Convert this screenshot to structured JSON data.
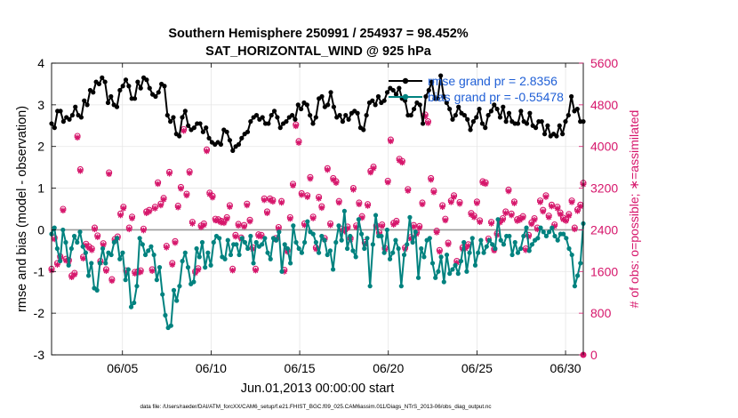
{
  "chart_data": {
    "type": "line",
    "title": "Southern Hemisphere 250991 / 254937 = 98.452%",
    "subtitle": "SAT_HORIZONTAL_WIND @ 925 hPa",
    "xlabel": "Jun.01,2013 00:00:00 start",
    "ylabel": "rmse and bias (model - observation)",
    "ylabel_right": "# of obs: o=possible; ∗=assimilated",
    "footer": "data file: /Users/raeder/DAI/ATM_forcXX/CAM6_setup/f.e21.FHIST_BGC.f09_025.CAM6assim.011/Diags_NTrS_2013-06/obs_diag_output.nc",
    "x_unit": "day of June 2013",
    "xlim": [
      1.0,
      31.0
    ],
    "ylim": [
      -3,
      4
    ],
    "ylim_right": [
      0,
      5600
    ],
    "xticks": [
      5,
      10,
      15,
      20,
      25,
      30
    ],
    "xtick_labels": [
      "06/05",
      "06/10",
      "06/15",
      "06/20",
      "06/25",
      "06/30"
    ],
    "yticks": [
      -3,
      -2,
      -1,
      0,
      1,
      2,
      3,
      4
    ],
    "yticks_right": [
      0,
      800,
      1600,
      2400,
      3200,
      4000,
      4800,
      5600
    ],
    "grid": true,
    "legend_position": "top-right",
    "series": [
      {
        "name": "rmse",
        "legend": "rmse grand pr = 2.8356",
        "color": "#000000",
        "axis": "left",
        "values": [
          2.55,
          2.45,
          2.85,
          2.85,
          2.6,
          2.7,
          2.65,
          2.75,
          2.95,
          2.75,
          2.7,
          3.1,
          3.0,
          3.35,
          3.3,
          3.55,
          3.5,
          3.65,
          3.55,
          3.05,
          3.2,
          3.0,
          2.95,
          3.35,
          3.45,
          3.6,
          3.45,
          3.15,
          3.15,
          3.55,
          3.4,
          3.65,
          3.6,
          3.4,
          3.25,
          3.2,
          3.3,
          3.5,
          3.45,
          2.75,
          2.6,
          2.7,
          2.3,
          2.25,
          2.7,
          2.85,
          2.5,
          2.4,
          2.45,
          2.55,
          2.55,
          2.35,
          2.45,
          2.2,
          2.1,
          2.05,
          2.1,
          2.05,
          2.4,
          2.35,
          2.15,
          1.9,
          2.0,
          2.05,
          2.2,
          2.3,
          2.35,
          2.6,
          2.7,
          2.75,
          2.65,
          2.7,
          2.55,
          2.55,
          2.75,
          2.85,
          2.7,
          2.45,
          2.55,
          2.6,
          2.7,
          2.75,
          2.65,
          3.0,
          2.9,
          3.05,
          3.0,
          2.75,
          2.55,
          2.7,
          3.15,
          3.2,
          2.95,
          3.0,
          3.3,
          2.95,
          2.7,
          2.75,
          2.6,
          2.75,
          2.65,
          2.8,
          2.85,
          2.8,
          2.45,
          2.4,
          2.75,
          3.05,
          3.1,
          3.0,
          3.2,
          3.05,
          3.1,
          3.3,
          3.4,
          3.35,
          3.25,
          3.4,
          3.15,
          3.1,
          2.75,
          2.75,
          2.9,
          3.05,
          3.0,
          2.55,
          3.2,
          3.35,
          3.55,
          3.15,
          3.15,
          3.7,
          3.2,
          3.05,
          2.9,
          2.65,
          2.75,
          2.95,
          2.8,
          2.75,
          2.65,
          2.4,
          2.6,
          2.7,
          2.9,
          2.55,
          2.45,
          2.75,
          2.85,
          3.0,
          2.9,
          2.7,
          2.95,
          2.6,
          2.8,
          2.6,
          2.55,
          2.55,
          2.85,
          2.6,
          2.55,
          2.8,
          2.5,
          2.45,
          2.6,
          2.6,
          2.3,
          2.5,
          2.25,
          2.3,
          2.25,
          2.5,
          2.3,
          2.6,
          2.75,
          3.2,
          2.85,
          2.9,
          2.6,
          2.6
        ]
      },
      {
        "name": "bias",
        "legend": "bias grand pr = -0.55478",
        "color": "#00827f",
        "axis": "left",
        "values": [
          -0.1,
          0.05,
          -0.45,
          -0.75,
          0.0,
          -0.3,
          -0.85,
          -0.45,
          -0.15,
          -0.3,
          -0.05,
          -0.4,
          -0.55,
          -1.1,
          -0.8,
          -1.4,
          -1.45,
          -0.8,
          -0.45,
          -0.8,
          -0.55,
          -0.6,
          -0.3,
          -0.2,
          -0.7,
          -0.55,
          -1.2,
          -0.95,
          -1.85,
          -1.75,
          -1.35,
          -0.2,
          -0.35,
          -0.6,
          -0.5,
          -0.4,
          -0.6,
          -1.2,
          -0.9,
          -1.55,
          -2.05,
          -2.35,
          -2.3,
          -1.45,
          -1.7,
          -1.35,
          -0.75,
          -0.55,
          -0.9,
          -1.3,
          -1.25,
          -0.45,
          -0.65,
          -0.3,
          -0.9,
          -0.55,
          -0.85,
          -0.3,
          -0.15,
          -0.2,
          -0.65,
          -0.7,
          -0.25,
          -0.6,
          -0.35,
          -0.35,
          -0.6,
          -0.2,
          -0.3,
          -0.45,
          -0.15,
          -0.8,
          -0.3,
          -0.4,
          -0.35,
          -0.2,
          -0.55,
          -0.7,
          -0.2,
          -0.25,
          -0.05,
          -1.0,
          -0.35,
          -0.45,
          -0.8,
          0.1,
          -0.3,
          -0.45,
          -0.55,
          -0.3,
          0.2,
          -0.05,
          -0.1,
          -0.3,
          -0.55,
          -0.15,
          -0.25,
          -0.6,
          -0.5,
          -0.95,
          -0.3,
          0.1,
          -0.25,
          0.45,
          -0.45,
          -0.15,
          -0.5,
          -0.65,
          0.25,
          -0.1,
          -0.45,
          -0.2,
          -1.35,
          -0.35,
          0.35,
          -0.15,
          -0.15,
          -0.55,
          0.0,
          -0.7,
          -0.55,
          -0.25,
          -0.45,
          -1.35,
          -0.6,
          -0.35,
          0.3,
          -0.3,
          -0.05,
          -1.15,
          -0.45,
          -0.65,
          -0.25,
          -0.2,
          -0.8,
          -1.15,
          -1.0,
          -0.65,
          -1.25,
          -0.6,
          -1.05,
          -0.95,
          -0.85,
          -1.05,
          -0.75,
          -0.3,
          -1.0,
          -0.55,
          -0.2,
          -0.85,
          -0.55,
          -0.25,
          -0.55,
          -0.4,
          -0.25,
          -0.35,
          -0.45,
          0.25,
          -0.25,
          -0.35,
          -0.15,
          -0.15,
          -0.6,
          -0.3,
          -0.55,
          -0.45,
          -0.15,
          0.05,
          -0.5,
          -0.35,
          -0.25,
          -0.2,
          0.05,
          -0.05,
          -0.15,
          -0.05,
          0.05,
          -0.15,
          -0.25,
          -0.1,
          -0.1,
          -0.2,
          -0.45,
          -0.6,
          -1.35,
          -1.1,
          -0.8,
          0.15
        ]
      },
      {
        "name": "obs_possible",
        "legend": "",
        "color": "#d6166b",
        "axis": "right",
        "values": [
          1650,
          2250,
          1760,
          1890,
          2800,
          1840,
          1820,
          1520,
          1570,
          4200,
          3560,
          1880,
          2130,
          2080,
          2040,
          2440,
          2290,
          1800,
          2140,
          1640,
          3500,
          1450,
          2220,
          2270,
          2710,
          2840,
          1620,
          2440,
          2650,
          1590,
          1600,
          1620,
          2420,
          2750,
          2780,
          1640,
          2840,
          3310,
          2900,
          3010,
          2090,
          3510,
          1760,
          2180,
          2860,
          3220,
          4330,
          3090,
          3520,
          2550,
          1600,
          1660,
          2480,
          2520,
          3940,
          3110,
          3050,
          2610,
          2600,
          2570,
          2560,
          2640,
          2870,
          1650,
          2300,
          2510,
          2250,
          2490,
          2900,
          2590,
          2060,
          1650,
          2310,
          2300,
          3000,
          2750,
          3000,
          2970,
          2240,
          2450,
          2950,
          1630,
          2010,
          2640,
          3280,
          4420,
          4100,
          3100,
          2520,
          3060,
          3410,
          2650,
          2060,
          3030,
          2850,
          2240,
          3580,
          2520,
          3390,
          3330,
          2950,
          2420,
          2400,
          2460,
          2240,
          3200,
          2480,
          2920,
          2660,
          2160,
          2890,
          3530,
          3610,
          2480,
          2350,
          2500,
          2050,
          3340,
          4130,
          2530,
          2570,
          3760,
          3720,
          2060,
          3180,
          2260,
          2490,
          2350,
          2470,
          2920,
          4610,
          4480,
          3390,
          3150,
          2380,
          2010,
          2870,
          2610,
          2150,
          2960,
          3060,
          1800,
          2930,
          2060,
          2070,
          2120,
          2720,
          2670,
          2940,
          2580,
          3330,
          3310,
          2230,
          2550,
          2030,
          2330,
          2570,
          2620,
          2750,
          3170,
          2710,
          2940,
          2600,
          2620,
          2660,
          2040,
          2300,
          2540,
          2620,
          2440,
          2960,
          2780,
          3060,
          2670,
          2880,
          2500,
          2840,
          2730,
          2630,
          2600,
          2700,
          2960,
          2440,
          2790,
          2880,
          3300
        ]
      },
      {
        "name": "obs_assimilated",
        "legend": "",
        "color": "#d6166b",
        "axis": "right",
        "values": [
          1620,
          2220,
          1730,
          1860,
          2770,
          1810,
          1790,
          1490,
          1540,
          4170,
          3530,
          1850,
          2100,
          2050,
          2010,
          2410,
          2260,
          1770,
          2110,
          1610,
          3470,
          1420,
          2190,
          2240,
          2680,
          2810,
          1590,
          2410,
          2620,
          1560,
          1570,
          1590,
          2390,
          2720,
          2750,
          1610,
          2810,
          3280,
          2870,
          2980,
          2060,
          3480,
          1730,
          2150,
          2830,
          3190,
          4300,
          3060,
          3490,
          2520,
          1570,
          1630,
          2450,
          2490,
          3910,
          3080,
          3020,
          2580,
          2570,
          2540,
          2530,
          2610,
          2840,
          1620,
          2270,
          2480,
          2220,
          2460,
          2870,
          2560,
          2030,
          1620,
          2280,
          2270,
          2970,
          2720,
          2970,
          2940,
          2210,
          2420,
          2920,
          1600,
          1980,
          2610,
          3250,
          4390,
          4070,
          3070,
          2490,
          3030,
          3380,
          2620,
          2030,
          3000,
          2820,
          2210,
          3550,
          2490,
          3360,
          3300,
          2920,
          2390,
          2370,
          2430,
          2210,
          3170,
          2450,
          2890,
          2630,
          2130,
          2860,
          3500,
          3580,
          2450,
          2320,
          2470,
          2020,
          3310,
          4100,
          2500,
          2540,
          3730,
          3690,
          2030,
          3150,
          2230,
          2460,
          2320,
          2440,
          2890,
          4580,
          4450,
          3360,
          3120,
          2350,
          1980,
          2840,
          2580,
          2120,
          2930,
          3030,
          1770,
          2900,
          2030,
          2040,
          2090,
          2690,
          2640,
          2910,
          2550,
          3300,
          3280,
          2200,
          2520,
          2000,
          2300,
          2540,
          2590,
          2720,
          3140,
          2680,
          2910,
          2570,
          2590,
          2630,
          2010,
          2270,
          2510,
          2590,
          2410,
          2930,
          2750,
          3030,
          2640,
          2850,
          2470,
          2810,
          2700,
          2600,
          2570,
          2670,
          2930,
          2410,
          2760,
          2850,
          3270
        ]
      }
    ]
  }
}
